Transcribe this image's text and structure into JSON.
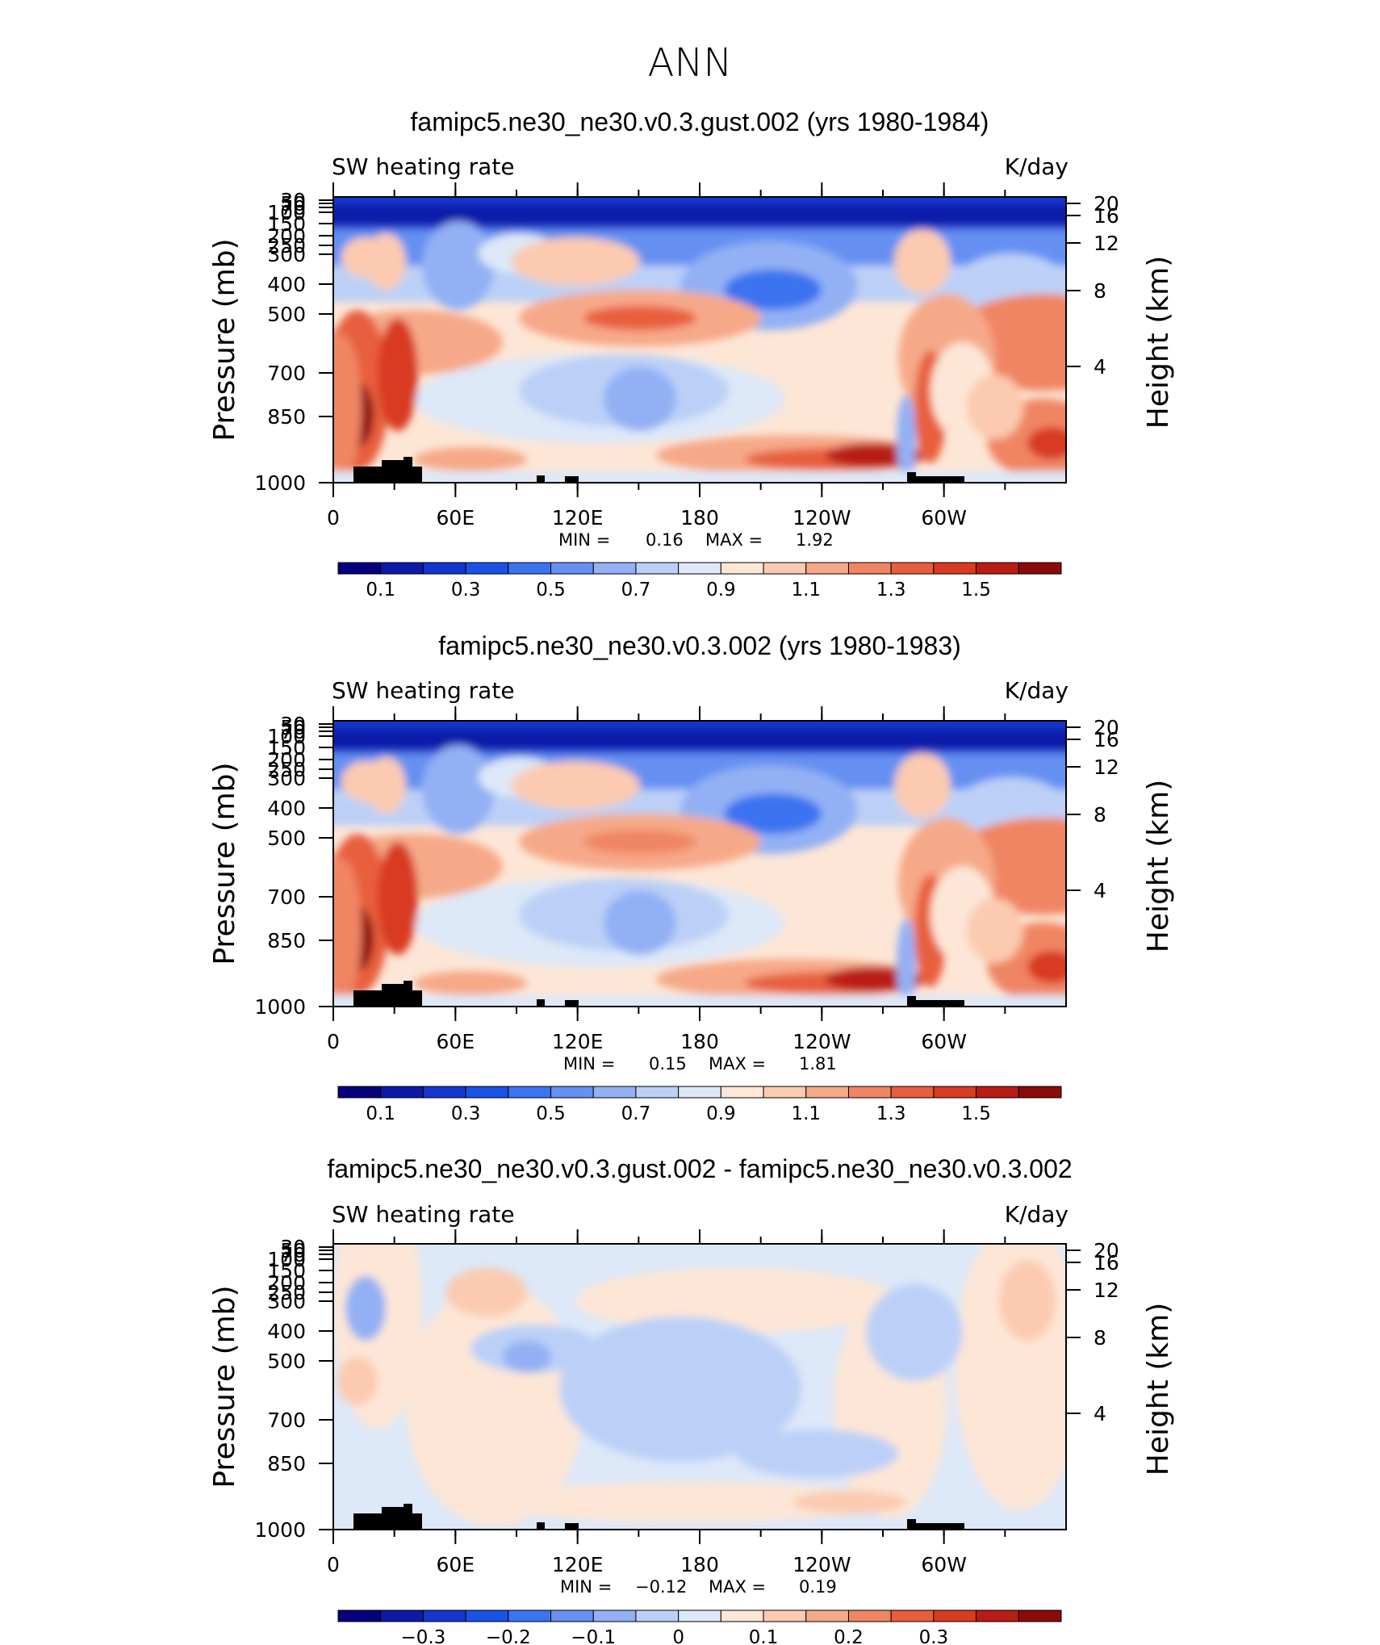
{
  "figure": {
    "title": "ANN"
  },
  "panels": [
    {
      "title": "famipc5.ne30_ne30.v0.3.gust.002 (yrs 1980-1984)",
      "left_label": "SW heating rate",
      "right_label": "K/day",
      "stats": {
        "min_label": "MIN =",
        "min": "0.16",
        "max_label": "MAX =",
        "max": "1.92"
      }
    },
    {
      "title": "famipc5.ne30_ne30.v0.3.002 (yrs 1980-1983)",
      "left_label": "SW heating rate",
      "right_label": "K/day",
      "stats": {
        "min_label": "MIN =",
        "min": "0.15",
        "max_label": "MAX =",
        "max": "1.81"
      }
    },
    {
      "title": "famipc5.ne30_ne30.v0.3.gust.002 - famipc5.ne30_ne30.v0.3.002",
      "left_label": "SW heating rate",
      "right_label": "K/day",
      "stats": {
        "min_label": "MIN =",
        "min": "−0.12",
        "max_label": "MAX =",
        "max": "0.19"
      }
    }
  ],
  "chart_data": [
    {
      "type": "heatmap",
      "title": "famipc5.ne30_ne30.v0.3.gust.002 (yrs 1980-1984)",
      "field": "SW heating rate",
      "units": "K/day",
      "x_ticks": [
        "0",
        "60E",
        "120E",
        "180",
        "120W",
        "60W"
      ],
      "x_range": [
        0,
        360
      ],
      "y_ticks": [
        "30",
        "50",
        "70",
        "100",
        "150",
        "200",
        "250",
        "300",
        "400",
        "500",
        "700",
        "850",
        "1000"
      ],
      "y_label": "Pressure (mb)",
      "y2_ticks": [
        "20",
        "16",
        "12",
        "8",
        "4"
      ],
      "y2_label": "Height (km)",
      "colorbar_levels": [
        0.05,
        0.1,
        0.2,
        0.3,
        0.4,
        0.5,
        0.6,
        0.7,
        0.8,
        0.9,
        1.0,
        1.1,
        1.2,
        1.3,
        1.4,
        1.5
      ],
      "colorbar_labels": [
        "0.1",
        "0.3",
        "0.5",
        "0.7",
        "0.9",
        "1.1",
        "1.3",
        "1.5"
      ],
      "min": 0.16,
      "max": 1.92
    },
    {
      "type": "heatmap",
      "title": "famipc5.ne30_ne30.v0.3.002 (yrs 1980-1983)",
      "field": "SW heating rate",
      "units": "K/day",
      "x_ticks": [
        "0",
        "60E",
        "120E",
        "180",
        "120W",
        "60W"
      ],
      "x_range": [
        0,
        360
      ],
      "y_ticks": [
        "30",
        "50",
        "70",
        "100",
        "150",
        "200",
        "250",
        "300",
        "400",
        "500",
        "700",
        "850",
        "1000"
      ],
      "y_label": "Pressure (mb)",
      "y2_ticks": [
        "20",
        "16",
        "12",
        "8",
        "4"
      ],
      "y2_label": "Height (km)",
      "colorbar_levels": [
        0.05,
        0.1,
        0.2,
        0.3,
        0.4,
        0.5,
        0.6,
        0.7,
        0.8,
        0.9,
        1.0,
        1.1,
        1.2,
        1.3,
        1.4,
        1.5
      ],
      "colorbar_labels": [
        "0.1",
        "0.3",
        "0.5",
        "0.7",
        "0.9",
        "1.1",
        "1.3",
        "1.5"
      ],
      "min": 0.15,
      "max": 1.81
    },
    {
      "type": "heatmap",
      "title": "famipc5.ne30_ne30.v0.3.gust.002 - famipc5.ne30_ne30.v0.3.002",
      "field": "SW heating rate",
      "units": "K/day",
      "x_ticks": [
        "0",
        "60E",
        "120E",
        "180",
        "120W",
        "60W"
      ],
      "x_range": [
        0,
        360
      ],
      "y_ticks": [
        "30",
        "50",
        "70",
        "100",
        "150",
        "200",
        "250",
        "300",
        "400",
        "500",
        "700",
        "850",
        "1000"
      ],
      "y_label": "Pressure (mb)",
      "y2_ticks": [
        "20",
        "16",
        "12",
        "8",
        "4"
      ],
      "y2_label": "Height (km)",
      "colorbar_levels": [
        -0.35,
        -0.3,
        -0.25,
        -0.2,
        -0.15,
        -0.1,
        -0.05,
        0,
        0.05,
        0.1,
        0.15,
        0.2,
        0.25,
        0.3,
        0.35
      ],
      "colorbar_labels": [
        "−0.3",
        "−0.2",
        "−0.1",
        "0",
        "0.1",
        "0.2",
        "0.3"
      ],
      "min": -0.12,
      "max": 0.19
    }
  ],
  "colors": {
    "scale": [
      "#05007e",
      "#0c1aa8",
      "#1236cf",
      "#1a52e8",
      "#3b73f1",
      "#6590f2",
      "#93b0f4",
      "#bcd0f7",
      "#dde8f8",
      "#fde6d6",
      "#fbcab0",
      "#f6a988",
      "#f08563",
      "#e85e3c",
      "#d83a22",
      "#b91c12",
      "#8c0a08"
    ],
    "land": "#000000"
  }
}
